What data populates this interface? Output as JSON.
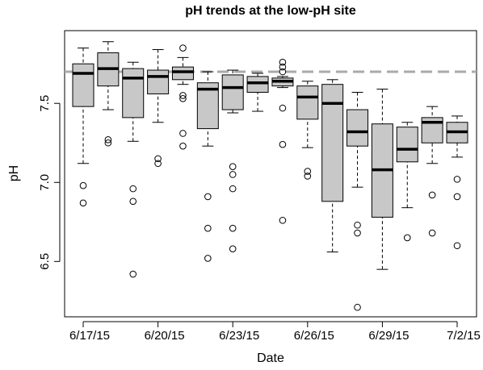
{
  "chart_data": {
    "type": "boxplot",
    "title": "pH trends at the low-pH site",
    "x_label": "Date",
    "y_label": "pH",
    "categories": [
      "6/17/15",
      null,
      null,
      "6/20/15",
      null,
      null,
      "6/23/15",
      null,
      null,
      "6/26/15",
      null,
      null,
      "6/29/15",
      null,
      null,
      "7/2/15"
    ],
    "color": "#c8c8c8",
    "ylim": [
      6.15,
      7.96
    ],
    "yticks": [
      6.5,
      {
        "value": 7,
        "label": "7.0"
      },
      7.5
    ],
    "reference_line": {
      "value": 7.7,
      "color": "#aaaaaa"
    },
    "boxes": [
      {
        "whisker_low": 7.12,
        "q1": 7.48,
        "median": 7.69,
        "q3": 7.75,
        "whisker_high": 7.85,
        "outliers": [
          6.98,
          6.87
        ]
      },
      {
        "whisker_low": 7.46,
        "q1": 7.61,
        "median": 7.72,
        "q3": 7.82,
        "whisker_high": 7.89,
        "outliers": [
          7.27,
          7.25
        ]
      },
      {
        "whisker_low": 7.26,
        "q1": 7.41,
        "median": 7.66,
        "q3": 7.72,
        "whisker_high": 7.76,
        "outliers": [
          6.96,
          6.88,
          6.42
        ]
      },
      {
        "whisker_low": 7.38,
        "q1": 7.56,
        "median": 7.67,
        "q3": 7.71,
        "whisker_high": 7.84,
        "outliers": [
          7.15,
          7.12
        ]
      },
      {
        "whisker_low": 7.62,
        "q1": 7.65,
        "median": 7.7,
        "q3": 7.73,
        "whisker_high": 7.79,
        "outliers": [
          7.85,
          7.55,
          7.53,
          7.31,
          7.23
        ]
      },
      {
        "whisker_low": 7.23,
        "q1": 7.34,
        "median": 7.59,
        "q3": 7.63,
        "whisker_high": 7.7,
        "outliers": [
          6.91,
          6.71,
          6.52
        ]
      },
      {
        "whisker_low": 7.44,
        "q1": 7.46,
        "median": 7.6,
        "q3": 7.68,
        "whisker_high": 7.71,
        "outliers": [
          7.1,
          7.05,
          6.96,
          6.71,
          6.58
        ]
      },
      {
        "whisker_low": 7.45,
        "q1": 7.57,
        "median": 7.63,
        "q3": 7.67,
        "whisker_high": 7.69,
        "outliers": []
      },
      {
        "whisker_low": 7.6,
        "q1": 7.61,
        "median": 7.64,
        "q3": 7.66,
        "whisker_high": 7.67,
        "outliers": [
          7.76,
          7.73,
          7.7,
          7.47,
          7.24,
          6.76
        ]
      },
      {
        "whisker_low": 7.22,
        "q1": 7.4,
        "median": 7.54,
        "q3": 7.61,
        "whisker_high": 7.64,
        "outliers": [
          7.07,
          7.04
        ]
      },
      {
        "whisker_low": 6.56,
        "q1": 6.88,
        "median": 7.5,
        "q3": 7.62,
        "whisker_high": 7.65,
        "outliers": []
      },
      {
        "whisker_low": 6.97,
        "q1": 7.23,
        "median": 7.32,
        "q3": 7.46,
        "whisker_high": 7.57,
        "outliers": [
          6.73,
          6.68,
          6.21
        ]
      },
      {
        "whisker_low": 6.45,
        "q1": 6.78,
        "median": 7.08,
        "q3": 7.37,
        "whisker_high": 7.59,
        "outliers": []
      },
      {
        "whisker_low": 6.84,
        "q1": 7.13,
        "median": 7.21,
        "q3": 7.35,
        "whisker_high": 7.38,
        "outliers": [
          6.65
        ]
      },
      {
        "whisker_low": 7.12,
        "q1": 7.25,
        "median": 7.38,
        "q3": 7.41,
        "whisker_high": 7.48,
        "outliers": [
          6.92,
          6.68
        ]
      },
      {
        "whisker_low": 7.16,
        "q1": 7.25,
        "median": 7.32,
        "q3": 7.38,
        "whisker_high": 7.42,
        "outliers": [
          7.02,
          6.91,
          6.6
        ]
      }
    ]
  }
}
